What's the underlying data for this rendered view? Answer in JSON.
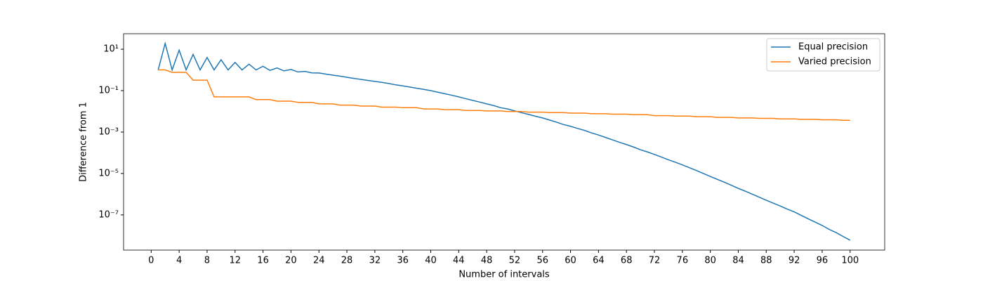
{
  "chart_data": {
    "type": "line",
    "x_label": "Number of intervals",
    "y_label": "Difference from 1",
    "log_y": true,
    "legend": "upper right",
    "x": [
      1,
      2,
      3,
      4,
      5,
      6,
      7,
      8,
      9,
      10,
      11,
      12,
      13,
      14,
      15,
      16,
      17,
      18,
      19,
      20,
      21,
      22,
      23,
      24,
      25,
      26,
      27,
      28,
      29,
      30,
      31,
      32,
      33,
      34,
      35,
      36,
      37,
      38,
      39,
      40,
      41,
      42,
      43,
      44,
      45,
      46,
      47,
      48,
      49,
      50,
      51,
      52,
      53,
      54,
      55,
      56,
      57,
      58,
      59,
      60,
      61,
      62,
      63,
      64,
      65,
      66,
      67,
      68,
      69,
      70,
      71,
      72,
      73,
      74,
      75,
      76,
      77,
      78,
      79,
      80,
      81,
      82,
      83,
      84,
      85,
      86,
      87,
      88,
      89,
      90,
      91,
      92,
      93,
      94,
      95,
      96,
      97,
      98,
      99,
      100
    ],
    "series": [
      {
        "name": "Equal precision",
        "color": "#1f77b4",
        "values": [
          1,
          19,
          1,
          9,
          1,
          5.6,
          1,
          4,
          1,
          3.1,
          1,
          2.3,
          1,
          1.9,
          1,
          1.5,
          0.95,
          1.25,
          0.9,
          1.05,
          0.8,
          0.85,
          0.72,
          0.71,
          0.63,
          0.56,
          0.5,
          0.44,
          0.39,
          0.35,
          0.31,
          0.28,
          0.25,
          0.22,
          0.19,
          0.17,
          0.15,
          0.13,
          0.115,
          0.1,
          0.084,
          0.071,
          0.06,
          0.05,
          0.041,
          0.034,
          0.028,
          0.023,
          0.019,
          0.015,
          0.013,
          0.0105,
          0.0086,
          0.0071,
          0.0058,
          0.0048,
          0.0038,
          0.003,
          0.0023,
          0.0019,
          0.0015,
          0.0012,
          0.00091,
          0.00072,
          0.00055,
          0.00042,
          0.00032,
          0.00025,
          0.00019,
          0.00014,
          0.00011,
          8.3e-05,
          6.2e-05,
          4.6e-05,
          3.5e-05,
          2.6e-05,
          1.9e-05,
          1.4e-05,
          1e-05,
          7.2e-06,
          5.2e-06,
          3.8e-06,
          2.7e-06,
          1.9e-06,
          1.4e-06,
          1e-06,
          7.2e-07,
          5.1e-07,
          3.7e-07,
          2.7e-07,
          1.9e-07,
          1.4e-07,
          9.5e-08,
          6.5e-08,
          4.5e-08,
          3.1e-08,
          2e-08,
          1.4e-08,
          9.1e-09,
          6e-09
        ]
      },
      {
        "name": "Varied precision",
        "color": "#ff7f0e",
        "values": [
          1,
          1,
          0.76,
          0.76,
          0.76,
          0.32,
          0.32,
          0.32,
          0.05,
          0.05,
          0.05,
          0.05,
          0.05,
          0.05,
          0.037,
          0.037,
          0.037,
          0.031,
          0.031,
          0.031,
          0.027,
          0.027,
          0.027,
          0.023,
          0.023,
          0.023,
          0.02,
          0.02,
          0.02,
          0.018,
          0.018,
          0.018,
          0.016,
          0.016,
          0.016,
          0.015,
          0.015,
          0.015,
          0.013,
          0.013,
          0.013,
          0.012,
          0.012,
          0.012,
          0.011,
          0.011,
          0.011,
          0.0105,
          0.0105,
          0.0105,
          0.0098,
          0.0098,
          0.0098,
          0.0092,
          0.0092,
          0.0092,
          0.0087,
          0.0087,
          0.0087,
          0.0082,
          0.0082,
          0.0082,
          0.0077,
          0.0077,
          0.0077,
          0.0073,
          0.0073,
          0.0073,
          0.0069,
          0.0069,
          0.0069,
          0.0062,
          0.0062,
          0.0062,
          0.0059,
          0.0059,
          0.0059,
          0.0055,
          0.0055,
          0.0055,
          0.0051,
          0.0051,
          0.0051,
          0.0048,
          0.0048,
          0.0048,
          0.0046,
          0.0046,
          0.0046,
          0.0043,
          0.0043,
          0.0043,
          0.0041,
          0.0041,
          0.0041,
          0.0039,
          0.0039,
          0.0039,
          0.0037,
          0.0037
        ]
      }
    ],
    "xlim": [
      -3.95,
      104.95
    ],
    "xticks": [
      0,
      4,
      8,
      12,
      16,
      20,
      24,
      28,
      32,
      36,
      40,
      44,
      48,
      52,
      56,
      60,
      64,
      68,
      72,
      76,
      80,
      84,
      88,
      92,
      96,
      100
    ],
    "ylim": [
      2e-09,
      56
    ],
    "yticks": [
      {
        "value": 10,
        "label": "10¹"
      },
      {
        "value": 0.1,
        "label": "10⁻¹"
      },
      {
        "value": 0.001,
        "label": "10⁻³"
      },
      {
        "value": 1e-05,
        "label": "10⁻⁵"
      },
      {
        "value": 1e-07,
        "label": "10⁻⁷"
      }
    ]
  }
}
